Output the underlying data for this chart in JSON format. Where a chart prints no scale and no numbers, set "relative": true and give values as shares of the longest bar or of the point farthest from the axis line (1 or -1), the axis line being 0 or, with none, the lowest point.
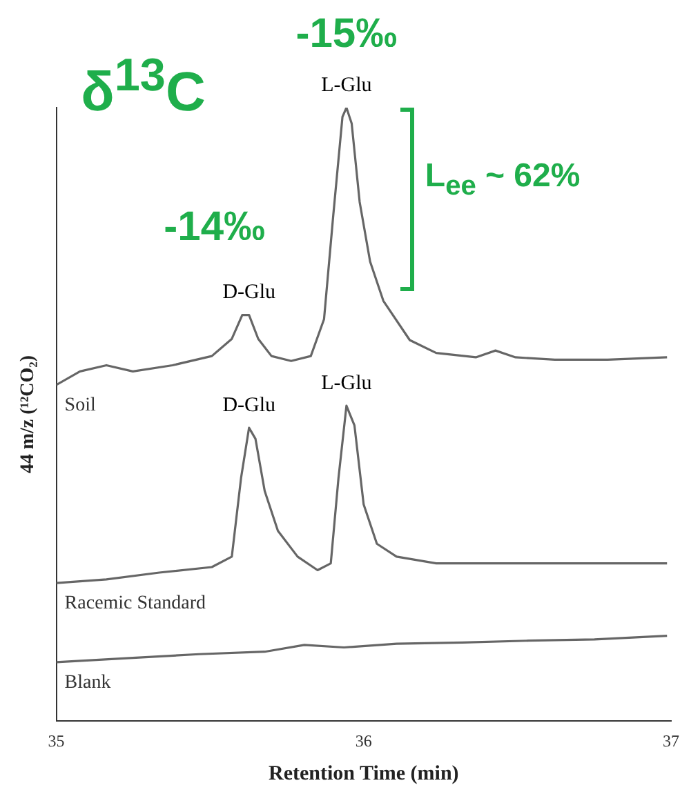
{
  "chart_data": {
    "type": "line",
    "relative": true,
    "xlabel": "Retention Time (min)",
    "ylabel": "44 m/z (¹²CO₂)",
    "xlim": [
      35,
      37
    ],
    "xticks": [
      35,
      36,
      37
    ],
    "grid": false,
    "legend": false,
    "marker": "none",
    "line_style": "solid",
    "series": [
      {
        "name": "Soil",
        "color": "#666666",
        "x": [
          35,
          35.077,
          35.163,
          35.249,
          35.378,
          35.506,
          35.571,
          35.605,
          35.627,
          35.657,
          35.7,
          35.764,
          35.828,
          35.871,
          35.901,
          35.931,
          35.944,
          35.961,
          35.987,
          36.021,
          36.064,
          36.15,
          36.236,
          36.365,
          36.429,
          36.494,
          36.622,
          36.794,
          36.987
        ],
        "values": [
          0.548,
          0.57,
          0.58,
          0.57,
          0.58,
          0.595,
          0.623,
          0.662,
          0.662,
          0.623,
          0.595,
          0.587,
          0.595,
          0.655,
          0.824,
          0.985,
          1.0,
          0.974,
          0.846,
          0.749,
          0.685,
          0.621,
          0.6,
          0.593,
          0.604,
          0.593,
          0.589,
          0.589,
          0.593
        ]
      },
      {
        "name": "Racemic Standard",
        "color": "#666666",
        "x": [
          35,
          35.163,
          35.335,
          35.506,
          35.571,
          35.601,
          35.627,
          35.648,
          35.678,
          35.721,
          35.785,
          35.85,
          35.893,
          35.918,
          35.944,
          35.97,
          36,
          36.043,
          36.107,
          36.236,
          36.408,
          36.622,
          36.794,
          36.987
        ],
        "values": [
          0.225,
          0.231,
          0.242,
          0.251,
          0.268,
          0.396,
          0.478,
          0.46,
          0.375,
          0.31,
          0.268,
          0.246,
          0.257,
          0.396,
          0.514,
          0.482,
          0.353,
          0.289,
          0.268,
          0.257,
          0.257,
          0.257,
          0.257,
          0.257
        ]
      },
      {
        "name": "Blank",
        "color": "#666666",
        "x": [
          35,
          35.249,
          35.464,
          35.678,
          35.807,
          35.936,
          36.107,
          36.322,
          36.536,
          36.751,
          36.987
        ],
        "values": [
          0.096,
          0.103,
          0.109,
          0.113,
          0.124,
          0.12,
          0.126,
          0.128,
          0.131,
          0.133,
          0.139
        ]
      }
    ],
    "annotations": [
      "δ$^{13}$C",
      "-15‰",
      "-14‰",
      "L$_{ee}$ ~ 62%",
      "D-Glu",
      "L-Glu",
      "D-Glu",
      "L-Glu"
    ]
  }
}
